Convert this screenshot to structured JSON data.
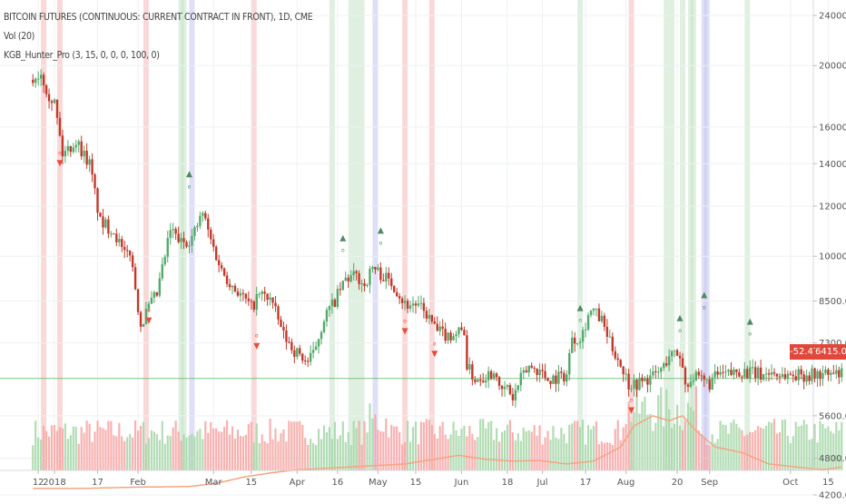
{
  "legend": {
    "symbol": "BITCOIN FUTURES (CONTINUOUS: CURRENT CONTRACT IN FRONT), 1D, CME",
    "volume": "Vol (20)",
    "indicator": "KGB_Hunter_Pro (3, 15, 0, 0, 0, 100, 0)"
  },
  "badges": {
    "change": "-52.47%",
    "last_price": "6415.00",
    "change_color": "#e0483c",
    "price_color": "#e0483c"
  },
  "chart_data": {
    "type": "candlestick",
    "scale": "log",
    "price_ticks": [
      24000,
      20000,
      16000,
      14000,
      12000,
      10000,
      8500,
      7300,
      5600,
      4800,
      4200
    ],
    "price_tick_labels": [
      "24000.00",
      "20000.00",
      "16000.00",
      "14000.00",
      "12000.00",
      "10000.00",
      "8500.00",
      "7300.00",
      "5600.00",
      "4800.00",
      "4200.00"
    ],
    "x_tick_labels": [
      "12",
      "2018",
      "17",
      "Feb",
      "Mar",
      "15",
      "Apr",
      "16",
      "May",
      "15",
      "Jun",
      "18",
      "Jul",
      "17",
      "Aug",
      "20",
      "Sep",
      "Oct",
      "15"
    ],
    "x_tick_days": [
      -6,
      0,
      16,
      31,
      59,
      73,
      90,
      105,
      120,
      134,
      151,
      168,
      181,
      197,
      212,
      231,
      243,
      273,
      287
    ],
    "last_price": 6415,
    "price_path_anchors": [
      [
        -8,
        19000
      ],
      [
        -5,
        19500
      ],
      [
        -2,
        18000
      ],
      [
        0,
        17500
      ],
      [
        3,
        14500
      ],
      [
        8,
        15200
      ],
      [
        13,
        14000
      ],
      [
        17,
        11300
      ],
      [
        22,
        11000
      ],
      [
        26,
        10000
      ],
      [
        28,
        10200
      ],
      [
        32,
        7800
      ],
      [
        35,
        8300
      ],
      [
        38,
        8700
      ],
      [
        41,
        10000
      ],
      [
        43,
        11000
      ],
      [
        47,
        10500
      ],
      [
        51,
        10700
      ],
      [
        55,
        11700
      ],
      [
        58,
        10600
      ],
      [
        62,
        9500
      ],
      [
        66,
        9000
      ],
      [
        70,
        8600
      ],
      [
        73,
        8300
      ],
      [
        76,
        8700
      ],
      [
        80,
        8600
      ],
      [
        85,
        7500
      ],
      [
        89,
        7100
      ],
      [
        94,
        6800
      ],
      [
        96,
        7000
      ],
      [
        100,
        8000
      ],
      [
        104,
        8500
      ],
      [
        108,
        9200
      ],
      [
        112,
        9300
      ],
      [
        115,
        9000
      ],
      [
        118,
        9600
      ],
      [
        122,
        9300
      ],
      [
        126,
        9000
      ],
      [
        130,
        8400
      ],
      [
        134,
        8400
      ],
      [
        138,
        8100
      ],
      [
        142,
        7600
      ],
      [
        146,
        7500
      ],
      [
        150,
        7600
      ],
      [
        152,
        7650
      ],
      [
        153,
        6700
      ],
      [
        156,
        6400
      ],
      [
        160,
        6500
      ],
      [
        164,
        6600
      ],
      [
        165,
        6100
      ],
      [
        168,
        6200
      ],
      [
        170,
        5950
      ],
      [
        173,
        6400
      ],
      [
        176,
        6700
      ],
      [
        180,
        6600
      ],
      [
        183,
        6400
      ],
      [
        187,
        6450
      ],
      [
        190,
        6500
      ],
      [
        192,
        7500
      ],
      [
        194,
        7400
      ],
      [
        196,
        7600
      ],
      [
        198,
        8100
      ],
      [
        200,
        8200
      ],
      [
        203,
        7900
      ],
      [
        206,
        7300
      ],
      [
        209,
        6900
      ],
      [
        211,
        6600
      ],
      [
        213,
        6300
      ],
      [
        216,
        6300
      ],
      [
        220,
        6400
      ],
      [
        223,
        6500
      ],
      [
        226,
        6700
      ],
      [
        228,
        7000
      ],
      [
        230,
        7000
      ],
      [
        232,
        7000
      ],
      [
        234,
        6300
      ],
      [
        237,
        6450
      ],
      [
        240,
        6350
      ],
      [
        243,
        6300
      ],
      [
        246,
        6500
      ],
      [
        250,
        6500
      ],
      [
        254,
        6600
      ],
      [
        258,
        6550
      ],
      [
        262,
        6500
      ],
      [
        266,
        6560
      ],
      [
        269,
        6500
      ],
      [
        273,
        6500
      ]
    ],
    "volume_avg_anchors": [
      [
        -8,
        4300
      ],
      [
        10,
        4300
      ],
      [
        30,
        4320
      ],
      [
        50,
        4330
      ],
      [
        60,
        4380
      ],
      [
        70,
        4480
      ],
      [
        80,
        4550
      ],
      [
        90,
        4600
      ],
      [
        110,
        4650
      ],
      [
        130,
        4700
      ],
      [
        150,
        4850
      ],
      [
        160,
        4780
      ],
      [
        170,
        4750
      ],
      [
        180,
        4760
      ],
      [
        190,
        4700
      ],
      [
        200,
        4750
      ],
      [
        210,
        5000
      ],
      [
        215,
        5400
      ],
      [
        222,
        5600
      ],
      [
        228,
        5500
      ],
      [
        233,
        5600
      ],
      [
        238,
        5300
      ],
      [
        245,
        5000
      ],
      [
        255,
        4900
      ],
      [
        265,
        4700
      ],
      [
        275,
        4650
      ],
      [
        285,
        4600
      ],
      [
        292,
        4650
      ]
    ],
    "highlight_bands": [
      {
        "day": -4,
        "color": "#f4b9b8"
      },
      {
        "day": 2,
        "color": "#f4b9b8"
      },
      {
        "day": 34,
        "color": "#f4b9b8"
      },
      {
        "day": 47,
        "color": "#c4e3c6"
      },
      {
        "day": 48,
        "color": "#c4e3c6"
      },
      {
        "day": 51,
        "color": "#c4c4f0"
      },
      {
        "day": 74,
        "color": "#f4b9b8"
      },
      {
        "day": 103,
        "color": "#c4e3c6"
      },
      {
        "day": 110,
        "color": "#c4e3c6"
      },
      {
        "day": 112,
        "color": "#c4e3c6"
      },
      {
        "day": 114,
        "color": "#c4e3c6"
      },
      {
        "day": 119,
        "color": "#c4c4f0"
      },
      {
        "day": 130,
        "color": "#f4b9b8"
      },
      {
        "day": 140,
        "color": "#f4b9b8"
      },
      {
        "day": 195,
        "color": "#c4e3c6"
      },
      {
        "day": 214,
        "color": "#f4b9b8"
      },
      {
        "day": 227,
        "color": "#c4e3c6"
      },
      {
        "day": 229,
        "color": "#c4e3c6"
      },
      {
        "day": 233,
        "color": "#c4e3c6"
      },
      {
        "day": 236,
        "color": "#c4e3c6"
      },
      {
        "day": 237,
        "color": "#c4e3c6"
      },
      {
        "day": 241,
        "color": "#c4c4f0"
      },
      {
        "day": 242,
        "color": "#c4c4f0"
      },
      {
        "day": 257,
        "color": "#c4e3c6"
      }
    ],
    "signals": [
      {
        "day": 2,
        "type": "sell",
        "price": 14000
      },
      {
        "day": 35,
        "type": "sell",
        "price": 7900
      },
      {
        "day": 50,
        "type": "buy",
        "price": 13500
      },
      {
        "day": 75,
        "type": "sell",
        "price": 7200
      },
      {
        "day": 107,
        "type": "buy",
        "price": 10700
      },
      {
        "day": 121,
        "type": "buy",
        "price": 11000
      },
      {
        "day": 130,
        "type": "sell",
        "price": 7600
      },
      {
        "day": 141,
        "type": "sell",
        "price": 7000
      },
      {
        "day": 195,
        "type": "buy",
        "price": 8300
      },
      {
        "day": 214,
        "type": "sell",
        "price": 5700
      },
      {
        "day": 232,
        "type": "buy",
        "price": 8000
      },
      {
        "day": 241,
        "type": "buy",
        "price": 8700
      },
      {
        "day": 258,
        "type": "buy",
        "price": 7900
      }
    ],
    "grid": true,
    "legend_position": "top-left"
  }
}
